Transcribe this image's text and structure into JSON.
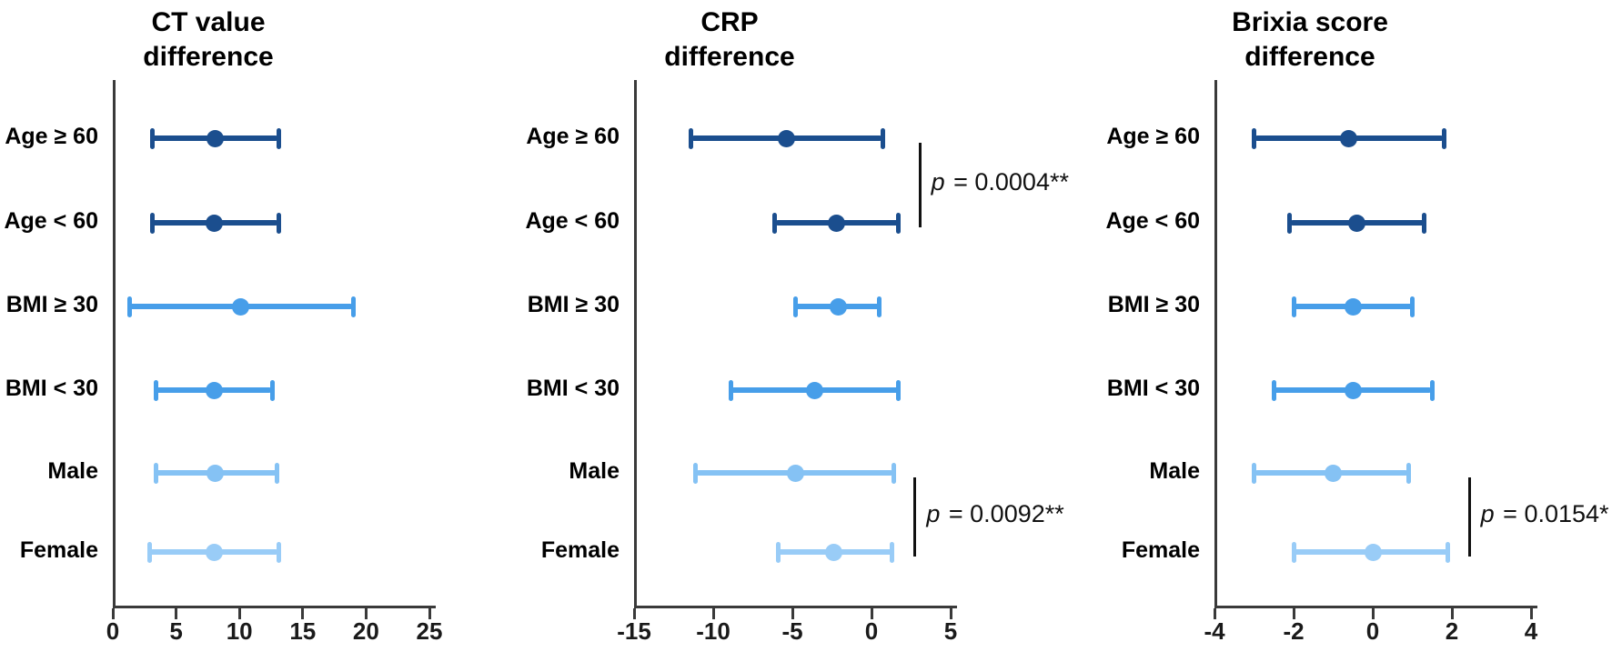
{
  "figure": {
    "background": "#ffffff",
    "axis_color": "#3a3a3a",
    "text_color": "#000000",
    "bracket_color": "#111111",
    "categories": [
      "Age ≥ 60",
      "Age < 60",
      "BMI ≥ 30",
      "BMI < 30",
      "Male",
      "Female"
    ],
    "row_colors": [
      "#1b4e8e",
      "#1b4e8e",
      "#479ee9",
      "#479ee9",
      "#85c2f4",
      "#99ccf7"
    ]
  },
  "chart_data": [
    {
      "type": "scatter",
      "subtype": "forest_plot_horizontal_ci",
      "title": [
        "CT value",
        "difference"
      ],
      "xlabel": "",
      "ylabel": "",
      "xlim": [
        0,
        25
      ],
      "xticks": [
        0,
        5,
        10,
        15,
        20,
        25
      ],
      "grid": false,
      "legend": null,
      "categories": [
        "Age ≥ 60",
        "Age < 60",
        "BMI ≥ 30",
        "BMI < 30",
        "Male",
        "Female"
      ],
      "points": [
        {
          "category": "Age ≥ 60",
          "mean": 8.1,
          "ci_low": 3.1,
          "ci_high": 13.1
        },
        {
          "category": "Age < 60",
          "mean": 8.0,
          "ci_low": 3.1,
          "ci_high": 13.1
        },
        {
          "category": "BMI ≥ 30",
          "mean": 10.1,
          "ci_low": 1.3,
          "ci_high": 19.0
        },
        {
          "category": "BMI < 30",
          "mean": 8.0,
          "ci_low": 3.4,
          "ci_high": 12.6
        },
        {
          "category": "Male",
          "mean": 8.1,
          "ci_low": 3.4,
          "ci_high": 13.0
        },
        {
          "category": "Female",
          "mean": 8.0,
          "ci_low": 2.9,
          "ci_high": 13.1
        }
      ],
      "annotations": []
    },
    {
      "type": "scatter",
      "subtype": "forest_plot_horizontal_ci",
      "title": [
        "CRP",
        "difference"
      ],
      "xlabel": "",
      "ylabel": "",
      "xlim": [
        -15,
        5
      ],
      "xticks": [
        -15,
        -10,
        -5,
        0,
        5
      ],
      "grid": false,
      "legend": null,
      "categories": [
        "Age ≥ 60",
        "Age < 60",
        "BMI ≥ 30",
        "BMI < 30",
        "Male",
        "Female"
      ],
      "points": [
        {
          "category": "Age ≥ 60",
          "mean": -5.4,
          "ci_low": -11.4,
          "ci_high": 0.7
        },
        {
          "category": "Age < 60",
          "mean": -2.2,
          "ci_low": -6.1,
          "ci_high": 1.7
        },
        {
          "category": "BMI ≥ 30",
          "mean": -2.1,
          "ci_low": -4.8,
          "ci_high": 0.5
        },
        {
          "category": "BMI < 30",
          "mean": -3.6,
          "ci_low": -8.9,
          "ci_high": 1.7
        },
        {
          "category": "Male",
          "mean": -4.8,
          "ci_low": -11.1,
          "ci_high": 1.4
        },
        {
          "category": "Female",
          "mean": -2.4,
          "ci_low": -5.9,
          "ci_high": 1.3
        }
      ],
      "annotations": [
        {
          "between": [
            "Age ≥ 60",
            "Age < 60"
          ],
          "text": "p = 0.0004**"
        },
        {
          "between": [
            "Male",
            "Female"
          ],
          "text": "p = 0.0092**"
        }
      ]
    },
    {
      "type": "scatter",
      "subtype": "forest_plot_horizontal_ci",
      "title": [
        "Brixia score",
        "difference"
      ],
      "xlabel": "",
      "ylabel": "",
      "xlim": [
        -4,
        4
      ],
      "xticks": [
        -4,
        -2,
        0,
        2,
        4
      ],
      "grid": false,
      "legend": null,
      "categories": [
        "Age ≥ 60",
        "Age < 60",
        "BMI ≥ 30",
        "BMI < 30",
        "Male",
        "Female"
      ],
      "points": [
        {
          "category": "Age ≥ 60",
          "mean": -0.6,
          "ci_low": -3.0,
          "ci_high": 1.8
        },
        {
          "category": "Age < 60",
          "mean": -0.4,
          "ci_low": -2.1,
          "ci_high": 1.3
        },
        {
          "category": "BMI ≥ 30",
          "mean": -0.5,
          "ci_low": -2.0,
          "ci_high": 1.0
        },
        {
          "category": "BMI < 30",
          "mean": -0.5,
          "ci_low": -2.5,
          "ci_high": 1.5
        },
        {
          "category": "Male",
          "mean": -1.0,
          "ci_low": -3.0,
          "ci_high": 0.9
        },
        {
          "category": "Female",
          "mean": 0.0,
          "ci_low": -2.0,
          "ci_high": 1.9
        }
      ],
      "annotations": [
        {
          "between": [
            "Male",
            "Female"
          ],
          "text": "p = 0.0154*"
        }
      ]
    }
  ]
}
